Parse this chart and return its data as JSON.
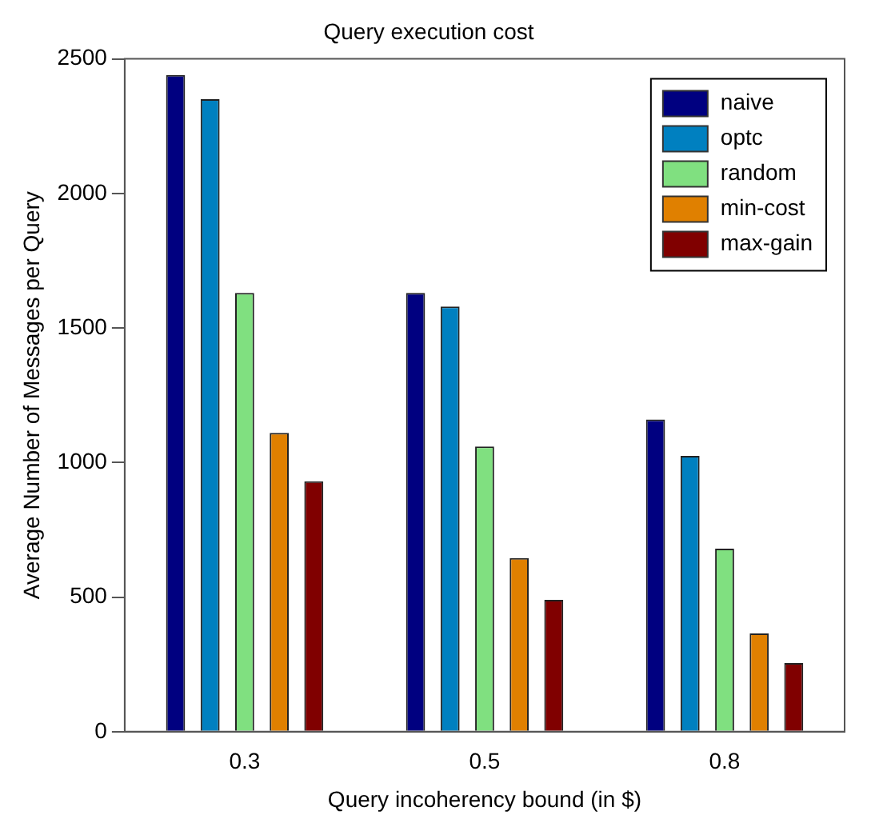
{
  "chart_data": {
    "type": "bar",
    "title": "Query execution cost",
    "xlabel": "Query incoherency bound (in $)",
    "ylabel": "Average Number of Messages per Query",
    "categories": [
      "0.3",
      "0.5",
      "0.8"
    ],
    "series": [
      {
        "name": "naive",
        "color": "#000080",
        "values": [
          2440,
          1630,
          1160
        ]
      },
      {
        "name": "optc",
        "color": "#0080c0",
        "values": [
          2350,
          1580,
          1025
        ]
      },
      {
        "name": "random",
        "color": "#80e080",
        "values": [
          1630,
          1060,
          680
        ]
      },
      {
        "name": "min-cost",
        "color": "#e08000",
        "values": [
          1110,
          645,
          365
        ]
      },
      {
        "name": "max-gain",
        "color": "#800000",
        "values": [
          930,
          490,
          255
        ]
      }
    ],
    "ylim": [
      0,
      2500
    ],
    "yticks": [
      0,
      500,
      1000,
      1500,
      2000,
      2500
    ],
    "grid": false,
    "legend": "top right"
  }
}
